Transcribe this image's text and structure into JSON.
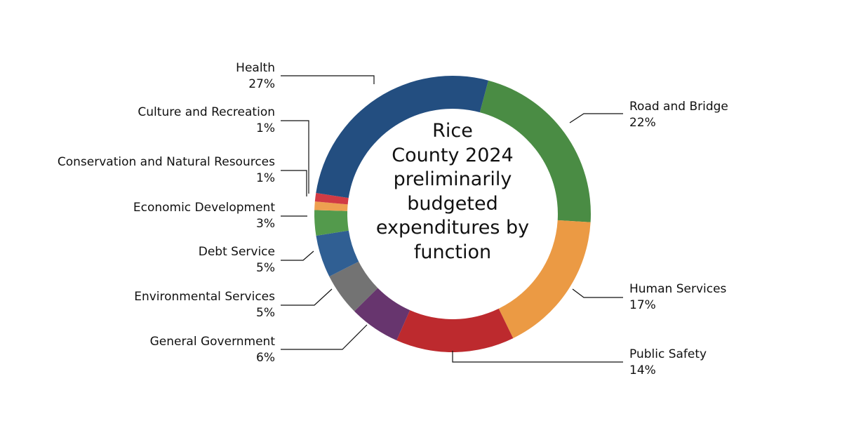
{
  "chart_data": {
    "type": "pie",
    "subtype": "donut",
    "title": "Rice County 2024 preliminarily budgeted expenditures by function",
    "title_lines": [
      "Rice",
      "County 2024",
      "preliminarily",
      "budgeted",
      "expenditures by",
      "function"
    ],
    "start_angle_deg": 15,
    "slices": [
      {
        "label": "Road and Bridge",
        "value": 22,
        "display": "22%",
        "color": "#4a8c44"
      },
      {
        "label": "Human Services",
        "value": 17,
        "display": "17%",
        "color": "#eb9a44"
      },
      {
        "label": "Public Safety",
        "value": 14,
        "display": "14%",
        "color": "#bd2a2e"
      },
      {
        "label": "General Government",
        "value": 6,
        "display": "6%",
        "color": "#67356e"
      },
      {
        "label": "Environmental Services",
        "value": 5,
        "display": "5%",
        "color": "#737373"
      },
      {
        "label": "Debt Service",
        "value": 5,
        "display": "5%",
        "color": "#305f93"
      },
      {
        "label": "Economic Development",
        "value": 3,
        "display": "3%",
        "color": "#539a4c"
      },
      {
        "label": "Conservation and Natural Resources",
        "value": 1,
        "display": "1%",
        "color": "#eea050"
      },
      {
        "label": "Culture and Recreation",
        "value": 1,
        "display": "1%",
        "color": "#d13b44"
      },
      {
        "label": "Health",
        "value": 27,
        "display": "27%",
        "color": "#234e80"
      }
    ],
    "legend_position": "callout labels"
  }
}
